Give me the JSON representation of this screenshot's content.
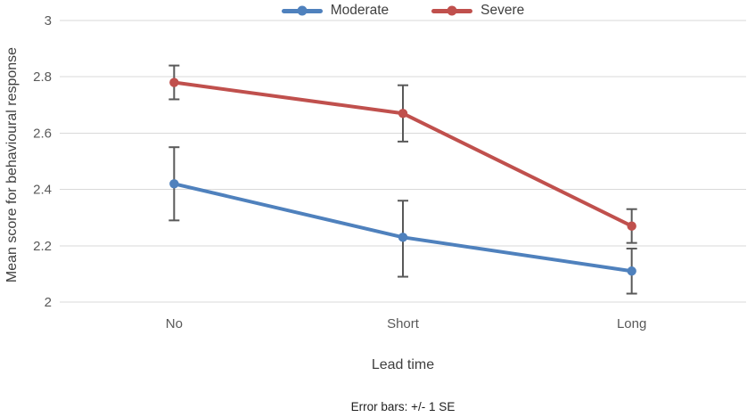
{
  "chart_data": {
    "type": "line",
    "categories": [
      "No",
      "Short",
      "Long"
    ],
    "xlabel": "Lead time",
    "ylabel": "Mean score for behavioural response",
    "caption": "Error bars: +/- 1 SE",
    "ylim": [
      2,
      3
    ],
    "yticks": [
      3,
      2.8,
      2.6,
      2.4,
      2.2,
      2
    ],
    "ytick_labels": [
      "3",
      "2.8",
      "2.6",
      "2.4",
      "2.2",
      "2"
    ],
    "grid": true,
    "legend_position": "top-center",
    "error_bars": "+/- 1 SE",
    "series": [
      {
        "name": "Moderate",
        "color": "#4F81BD",
        "values": [
          2.42,
          2.23,
          2.11
        ],
        "error_upper": [
          2.55,
          2.36,
          2.19
        ],
        "error_lower": [
          2.29,
          2.09,
          2.03
        ]
      },
      {
        "name": "Severe",
        "color": "#C0504D",
        "values": [
          2.78,
          2.67,
          2.27
        ],
        "error_upper": [
          2.84,
          2.77,
          2.33
        ],
        "error_lower": [
          2.72,
          2.57,
          2.21
        ]
      }
    ]
  },
  "style": {
    "background": "#FFFFFF",
    "gridline": "#D9D9D9",
    "error_bar": "#595959",
    "tick_text": "#595959",
    "title_text": "#3F3F3F",
    "caption_text": "#1F1F1F"
  }
}
